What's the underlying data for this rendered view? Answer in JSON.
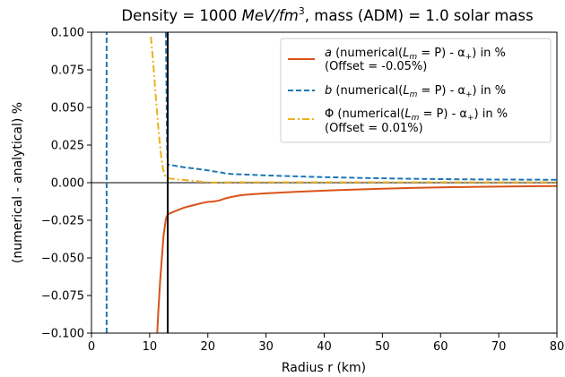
{
  "chart_data": {
    "type": "line",
    "title": {
      "prefix": "Density = 1000 ",
      "unit_italic": "MeV/fm",
      "unit_exp": "3",
      "suffix": ", mass (ADM) = 1.0 solar mass"
    },
    "xlabel": "Radius r (km)",
    "ylabel": "(numerical - analytical) %",
    "xlim": [
      0,
      80
    ],
    "ylim": [
      -0.1,
      0.1
    ],
    "xticks": [
      0,
      10,
      20,
      30,
      40,
      50,
      60,
      70,
      80
    ],
    "yticks": [
      -0.1,
      -0.075,
      -0.05,
      -0.025,
      0.0,
      0.025,
      0.05,
      0.075,
      0.1
    ],
    "ytick_labels": [
      "−0.100",
      "−0.075",
      "−0.050",
      "−0.025",
      "0.000",
      "0.025",
      "0.050",
      "0.075",
      "0.100"
    ],
    "xtick_labels": [
      "0",
      "10",
      "20",
      "30",
      "40",
      "50",
      "60",
      "70",
      "80"
    ],
    "hline": {
      "y": 0.0,
      "color": "#808080"
    },
    "vline": {
      "x": 13.1,
      "color": "#000000"
    },
    "legend_position": "upper right",
    "series": [
      {
        "legend_var": "a",
        "legend_rest": " (numerical(",
        "legend_sub": "m",
        "legend_eq": " = P) - α",
        "legend_plus": "+",
        "legend_tail": ") in %",
        "legend_line2": "(Offset = -0.05%)",
        "color": "#d95319",
        "style": "solid",
        "x": [
          11.3,
          11.5,
          11.8,
          12.1,
          12.4,
          12.8,
          13.1,
          14,
          15,
          16,
          17,
          18,
          19,
          20,
          21,
          22,
          23,
          24,
          25,
          26,
          28,
          30,
          35,
          40,
          45,
          50,
          55,
          60,
          65,
          70,
          75,
          80
        ],
        "y": [
          -0.1,
          -0.085,
          -0.065,
          -0.05,
          -0.035,
          -0.024,
          -0.021,
          -0.0195,
          -0.018,
          -0.0165,
          -0.0155,
          -0.0145,
          -0.0135,
          -0.0128,
          -0.0125,
          -0.0118,
          -0.0105,
          -0.0095,
          -0.0088,
          -0.0082,
          -0.0076,
          -0.0071,
          -0.0061,
          -0.0053,
          -0.0046,
          -0.004,
          -0.0035,
          -0.0031,
          -0.0028,
          -0.0026,
          -0.0024,
          -0.0022
        ]
      },
      {
        "legend_var": "b",
        "legend_rest": " (numerical(",
        "legend_sub": "m",
        "legend_eq": " = P) - α",
        "legend_plus": "+",
        "legend_tail": ") in %",
        "legend_line2": "",
        "color": "#1f77b4",
        "style": "dashed",
        "segments": [
          {
            "x": [
              2.6,
              2.6
            ],
            "y": [
              -0.1,
              0.1
            ]
          },
          {
            "x": [
              12.8,
              12.9,
              13.0,
              13.1,
              14,
              15,
              16,
              18,
              20,
              21,
              22,
              23,
              24,
              26,
              28,
              30,
              35,
              40,
              45,
              50,
              55,
              60,
              65,
              70,
              75,
              80
            ],
            "y": [
              0.1,
              0.06,
              0.025,
              0.012,
              0.0115,
              0.0108,
              0.0102,
              0.0092,
              0.0082,
              0.0075,
              0.007,
              0.0062,
              0.0058,
              0.0055,
              0.0051,
              0.0048,
              0.0042,
              0.0037,
              0.0033,
              0.0029,
              0.0026,
              0.0024,
              0.0022,
              0.0021,
              0.002,
              0.0019
            ]
          }
        ]
      },
      {
        "legend_var": "Φ",
        "legend_rest": " (numerical(",
        "legend_sub": "m",
        "legend_eq": " = P) - α",
        "legend_plus": "+",
        "legend_tail": ") in %",
        "legend_line2": "(Offset = 0.01%)",
        "color": "#edb120",
        "style": "dashdot",
        "x": [
          10.2,
          10.5,
          10.8,
          11.1,
          11.4,
          11.7,
          12.0,
          12.3,
          12.6,
          12.9,
          13.2,
          14,
          15,
          16,
          17,
          18,
          19,
          20,
          21,
          22,
          23,
          24,
          25,
          27,
          30,
          35,
          40,
          50,
          60,
          70,
          80
        ],
        "y": [
          0.097,
          0.085,
          0.07,
          0.055,
          0.04,
          0.028,
          0.017,
          0.009,
          0.005,
          0.0035,
          0.003,
          0.0025,
          0.002,
          0.0018,
          0.0014,
          0.001,
          0.0006,
          0.0003,
          0.0002,
          0.0002,
          0.0002,
          0.0003,
          0.0003,
          0.0003,
          0.0003,
          0.0003,
          0.0003,
          0.0003,
          0.0003,
          0.0003,
          0.0003
        ]
      }
    ]
  }
}
